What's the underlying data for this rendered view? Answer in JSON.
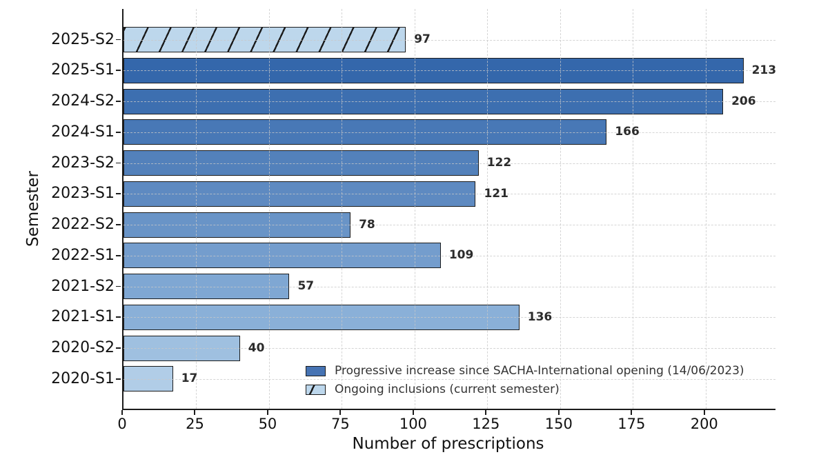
{
  "chart_data": {
    "type": "bar",
    "orientation": "horizontal",
    "title": "",
    "xlabel": "Number of prescriptions",
    "ylabel": "Semester",
    "xlim": [
      0,
      224
    ],
    "xticks": [
      0,
      25,
      50,
      75,
      100,
      125,
      150,
      175,
      200
    ],
    "grid": "dashed, both axes, drawn over bars",
    "categories": [
      "2025-S2",
      "2025-S1",
      "2024-S2",
      "2024-S1",
      "2023-S2",
      "2023-S1",
      "2022-S2",
      "2022-S1",
      "2021-S2",
      "2021-S1",
      "2020-S2",
      "2020-S1"
    ],
    "values": [
      97,
      213,
      206,
      166,
      122,
      121,
      78,
      109,
      57,
      136,
      40,
      17
    ],
    "bar_colors": [
      "#bdd7ec",
      "#3467ab",
      "#3d6fb0",
      "#4878b6",
      "#5381bb",
      "#5e8ac1",
      "#6994c7",
      "#749dcd",
      "#7fa7d3",
      "#8ab0d8",
      "#9fc0e0",
      "#b1cde7"
    ],
    "bar_hatched": [
      true,
      false,
      false,
      false,
      false,
      false,
      false,
      false,
      false,
      false,
      false,
      false
    ],
    "bar_edge_color": "#1b1b1b",
    "value_label_color": "#2b2b2b",
    "legend_position": "lower right",
    "legend": [
      {
        "label": "Progressive increase since SACHA-International opening (14/06/2023)",
        "color": "#4673b3",
        "hatch": false
      },
      {
        "label": "Ongoing inclusions (current semester)",
        "color": "#bdd7ec",
        "hatch": true
      }
    ]
  }
}
